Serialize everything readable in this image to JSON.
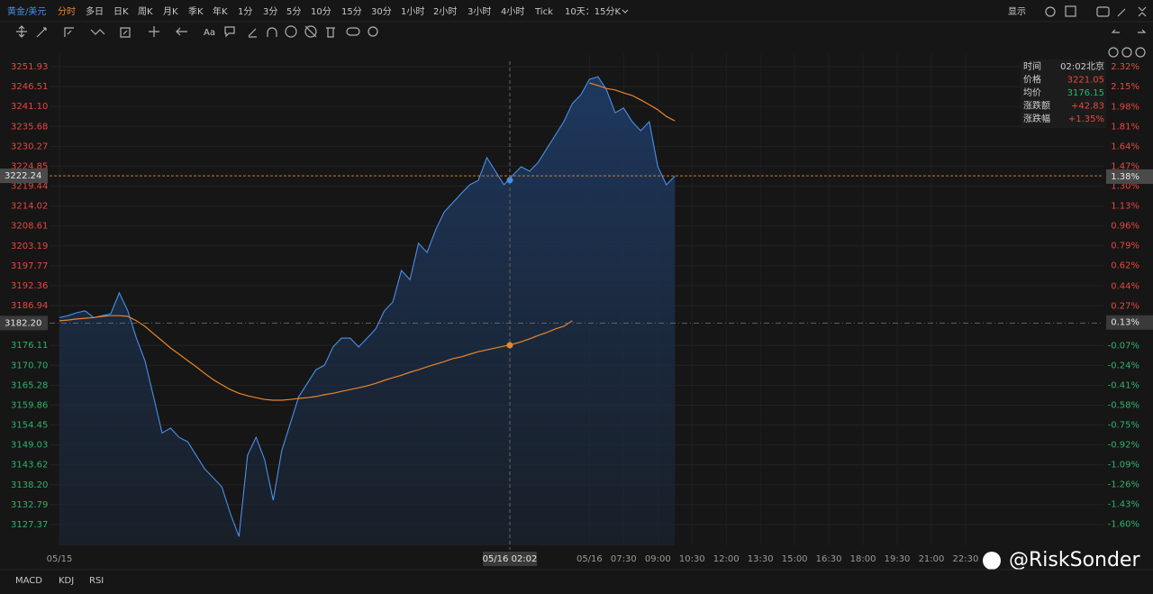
{
  "toolbar": {
    "symbol": "黄金/美元",
    "periods": [
      "分时",
      "多日",
      "日K",
      "周K",
      "月K",
      "季K",
      "年K",
      "1分",
      "3分",
      "5分",
      "10分",
      "15分",
      "30分",
      "1小时",
      "2小时",
      "3小时",
      "4小时",
      "Tick",
      "10天：15分K"
    ],
    "display": "显示"
  },
  "drawing_toolbar": {
    "text": "Aa"
  },
  "info_box": {
    "rows": [
      {
        "label": "时间",
        "value": "02:02北京"
      },
      {
        "label": "价格",
        "value": "3221.05"
      },
      {
        "label": "均价",
        "value": "3176.15"
      },
      {
        "label": "涨跌额",
        "value": "+42.83"
      },
      {
        "label": "涨跌幅",
        "value": "+1.35%"
      }
    ]
  },
  "indicators": [
    "MACD",
    "KDJ",
    "RSI"
  ],
  "watermark": "@RiskSonder",
  "chart_data": {
    "type": "line",
    "categories": [
      "05/15",
      null,
      null,
      null,
      null,
      null,
      null,
      null,
      null,
      null,
      null,
      null,
      null,
      null,
      null,
      null,
      null,
      null,
      null,
      null,
      null,
      null,
      null,
      null,
      null,
      null,
      null,
      null,
      null,
      null,
      null,
      null,
      null,
      null,
      null,
      null,
      null,
      null,
      null,
      null,
      null,
      null,
      null,
      null,
      null,
      null,
      null,
      null,
      null,
      null,
      null,
      null,
      null,
      null,
      null,
      null,
      null,
      null,
      null,
      null,
      null,
      null,
      "05/16",
      null,
      null,
      null,
      "07:30",
      null,
      null,
      null,
      "09:00",
      null,
      null,
      null,
      "10:30",
      null,
      null,
      null,
      "12:00",
      null,
      null,
      null,
      "13:30",
      null,
      null,
      null,
      "15:00",
      null,
      null,
      null,
      "16:30",
      null,
      null,
      null,
      "18:00",
      null,
      null,
      null,
      "19:30",
      null,
      null,
      null,
      "21:00",
      null,
      null,
      null,
      "22:30"
    ],
    "series": [
      {
        "name": "价格",
        "color": "#4a8fe7",
        "values": [
          3183.7,
          3184.2,
          3185.0,
          3185.5,
          3183.7,
          3184.2,
          3184.7,
          3190.4,
          3185.5,
          3178.1,
          3172.0,
          3162.2,
          3152.3,
          3153.6,
          3151.1,
          3149.9,
          3146.2,
          3142.5,
          3140.1,
          3137.6,
          3130.3,
          3124.1,
          3146.2,
          3151.1,
          3145.0,
          3134.0,
          3147.4,
          3154.8,
          3162.2,
          3165.8,
          3169.5,
          3170.7,
          3175.7,
          3178.1,
          3178.1,
          3175.7,
          3178.1,
          3180.6,
          3185.5,
          3187.9,
          3196.5,
          3194.0,
          3203.9,
          3201.4,
          3207.5,
          3212.4,
          3214.9,
          3217.4,
          3219.8,
          3221.0,
          3227.2,
          3223.5,
          3219.8,
          3222.3,
          3224.7,
          3223.5,
          3225.9,
          3229.6,
          3233.3,
          3237.0,
          3241.9,
          3244.3,
          3248.5,
          3249.2,
          3245.6,
          3239.4,
          3240.7,
          3237.0,
          3234.5,
          3237.0,
          3224.7,
          3219.8,
          3222.2,
          null,
          null,
          null,
          null,
          null,
          null,
          null,
          null,
          null,
          null,
          null,
          null,
          null,
          null,
          null,
          null,
          null,
          null,
          null,
          null,
          null,
          null,
          null,
          null,
          null,
          null,
          null,
          null,
          null,
          null,
          null,
          null,
          null,
          null
        ]
      },
      {
        "name": "均价",
        "color": "#e8862a",
        "values": [
          3182.8,
          3183.0,
          3183.3,
          3183.5,
          3183.7,
          3184.0,
          3184.2,
          3184.2,
          3184.0,
          3182.8,
          3181.3,
          3179.3,
          3177.4,
          3175.4,
          3173.7,
          3172.0,
          3170.3,
          3168.5,
          3166.8,
          3165.4,
          3164.1,
          3163.1,
          3162.4,
          3161.9,
          3161.4,
          3161.2,
          3161.2,
          3161.4,
          3161.7,
          3161.9,
          3162.2,
          3162.7,
          3163.1,
          3163.6,
          3164.1,
          3164.6,
          3165.1,
          3165.8,
          3166.6,
          3167.3,
          3168.0,
          3168.8,
          3169.5,
          3170.3,
          3171.0,
          3171.7,
          3172.5,
          3173.0,
          3173.7,
          3174.4,
          3174.9,
          3175.4,
          3175.9,
          3176.4,
          3177.1,
          3177.9,
          3178.8,
          3179.6,
          3180.6,
          3181.3,
          3182.8,
          null,
          3247.5,
          3246.8,
          3246.0,
          3245.6,
          3244.8,
          3244.1,
          3242.9,
          3241.6,
          3240.2,
          3238.4,
          3237.2,
          null,
          null,
          null,
          null,
          null,
          null,
          null,
          null,
          null,
          null,
          null,
          null,
          null,
          null,
          null,
          null,
          null,
          null,
          null,
          null,
          null,
          null,
          null,
          null,
          null,
          null,
          null,
          null,
          null,
          null,
          null,
          null,
          null,
          null
        ]
      }
    ],
    "ylim": [
      3121.73,
      3255.36
    ],
    "yticks": [
      3251.93,
      3246.51,
      {
        "value": 3241.1,
        "label": "3241.10"
      },
      3235.68,
      3230.27,
      3224.85,
      3219.44,
      3214.02,
      3208.61,
      3203.19,
      3197.77,
      3192.36,
      3186.94,
      3176.11,
      {
        "value": 3170.7,
        "label": "3170.70"
      },
      3165.28,
      3159.86,
      3154.45,
      3149.03,
      3143.62,
      {
        "value": 3138.2,
        "label": "3138.20"
      },
      3132.79,
      3127.37
    ],
    "y2lim": [
      -1.78,
      2.43
    ],
    "y2ticks": [
      {
        "value": 2.32,
        "label": "2.32%"
      },
      {
        "value": 2.15,
        "label": "2.15%"
      },
      {
        "value": 1.98,
        "label": "1.98%"
      },
      {
        "value": 1.81,
        "label": "1.81%"
      },
      {
        "value": 1.64,
        "label": "1.64%"
      },
      {
        "value": 1.47,
        "label": "1.47%"
      },
      {
        "value": 1.3,
        "label": "1.30%"
      },
      {
        "value": 1.13,
        "label": "1.13%"
      },
      {
        "value": 0.96,
        "label": "0.96%"
      },
      {
        "value": 0.79,
        "label": "0.79%"
      },
      {
        "value": 0.62,
        "label": "0.62%"
      },
      {
        "value": 0.44,
        "label": "0.44%"
      },
      {
        "value": 0.27,
        "label": "0.27%"
      },
      {
        "value": -0.07,
        "label": "-0.07%"
      },
      {
        "value": -0.24,
        "label": "-0.24%"
      },
      {
        "value": -0.41,
        "label": "-0.41%"
      },
      {
        "value": -0.58,
        "label": "-0.58%"
      },
      {
        "value": -0.75,
        "label": "-0.75%"
      },
      {
        "value": -0.92,
        "label": "-0.92%"
      },
      {
        "value": -1.09,
        "label": "-1.09%"
      },
      {
        "value": -1.26,
        "label": "-1.26%"
      },
      {
        "value": -1.43,
        "label": "-1.43%"
      },
      {
        "value": -1.6,
        "label": "-1.60%"
      }
    ],
    "y_markers": [
      3222.24,
      {
        "value": 3182.2,
        "label": "3182.20"
      }
    ],
    "y2_markers": [
      {
        "value": 1.38,
        "label": "1.38%"
      },
      {
        "value": 0.13,
        "label": "0.13%"
      }
    ],
    "crosshair_label": "05/16 02:02",
    "up_color": "#e8473f",
    "down_color": "#2fb36a",
    "grid": true
  }
}
